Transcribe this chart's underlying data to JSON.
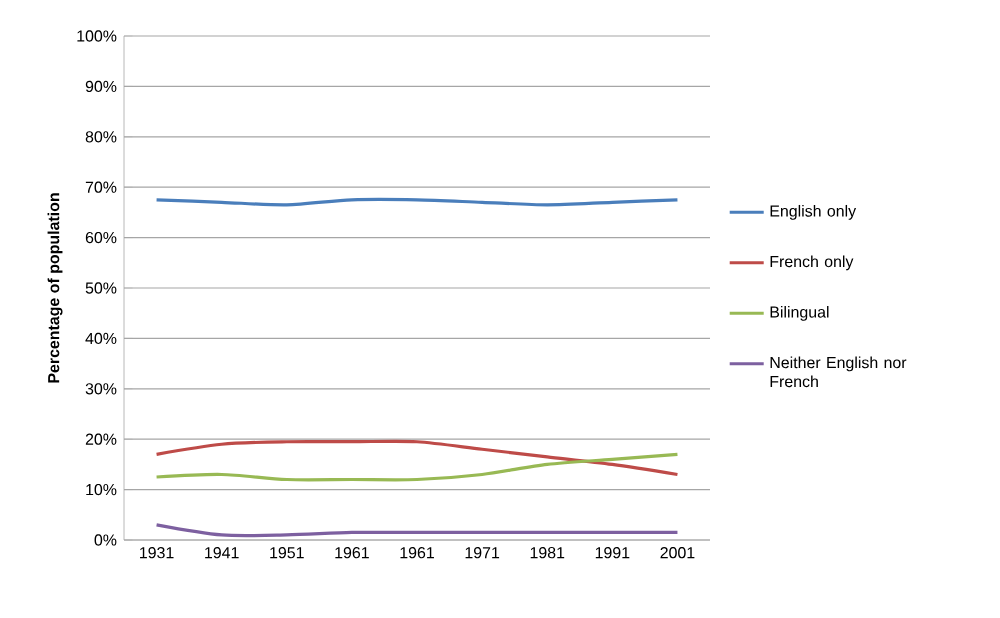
{
  "chart_data": {
    "type": "line",
    "ylabel": "Percentage of population",
    "categories": [
      "1931",
      "1941",
      "1951",
      "1961",
      "1961",
      "1971",
      "1981",
      "1991",
      "2001"
    ],
    "series": [
      {
        "name": "English only",
        "color": "#4a7ebb",
        "values": [
          67.5,
          67,
          66.5,
          67.5,
          67.5,
          67,
          66.5,
          67,
          67.5
        ]
      },
      {
        "name": "French only",
        "color": "#be4b48",
        "values": [
          17,
          19,
          19.5,
          19.5,
          19.5,
          18,
          16.5,
          15,
          13
        ]
      },
      {
        "name": "Bilingual",
        "color": "#98b954",
        "values": [
          12.5,
          13,
          12,
          12,
          12,
          13,
          15,
          16,
          17
        ]
      },
      {
        "name": "Neither English nor French",
        "color": "#7d60a0",
        "values": [
          3,
          1,
          1,
          1.5,
          1.5,
          1.5,
          1.5,
          1.5,
          1.5
        ]
      }
    ],
    "ylim": [
      0,
      100
    ],
    "yticks": [
      {
        "value": 0,
        "label": "0%"
      },
      {
        "value": 10,
        "label": "10%"
      },
      {
        "value": 20,
        "label": "20%"
      },
      {
        "value": 30,
        "label": "30%"
      },
      {
        "value": 40,
        "label": "40%"
      },
      {
        "value": 50,
        "label": "50%"
      },
      {
        "value": 60,
        "label": "60%"
      },
      {
        "value": 70,
        "label": "70%"
      },
      {
        "value": 80,
        "label": "80%"
      },
      {
        "value": 90,
        "label": "90%"
      },
      {
        "value": 100,
        "label": "100%"
      }
    ],
    "grid": "y",
    "legend": "right",
    "marker": "none",
    "line_style": "solid"
  }
}
